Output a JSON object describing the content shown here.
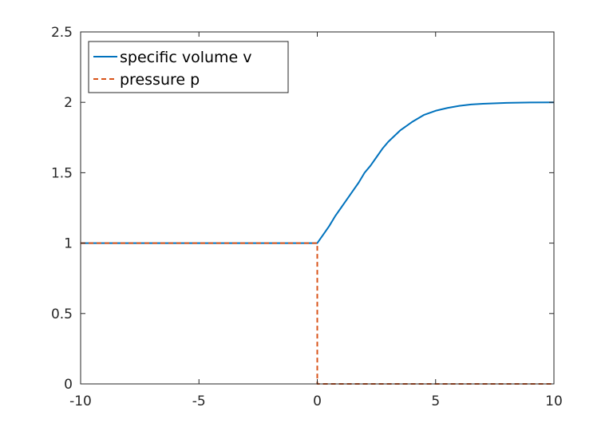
{
  "chart_data": {
    "type": "line",
    "title": "",
    "xlabel": "",
    "ylabel": "",
    "xlim": [
      -10,
      10
    ],
    "ylim": [
      0,
      2.5
    ],
    "xticks": [
      -10,
      -5,
      0,
      5,
      10
    ],
    "xtick_labels": [
      "-10",
      "-5",
      "0",
      "5",
      "10"
    ],
    "yticks": [
      0,
      0.5,
      1,
      1.5,
      2,
      2.5
    ],
    "ytick_labels": [
      "0",
      "0.5",
      "1",
      "1.5",
      "2",
      "2.5"
    ],
    "grid": false,
    "legend_position": "top-left",
    "series": [
      {
        "name": "specific volume v",
        "color": "#0072BD",
        "dash": "solid",
        "x": [
          -10,
          -5,
          0,
          0.25,
          0.5,
          0.75,
          1,
          1.25,
          1.5,
          1.75,
          2,
          2.25,
          2.5,
          2.75,
          3,
          3.5,
          4,
          4.5,
          5,
          5.5,
          6,
          6.5,
          7,
          8,
          9,
          10
        ],
        "y": [
          1,
          1,
          1,
          1.06,
          1.12,
          1.19,
          1.25,
          1.31,
          1.37,
          1.43,
          1.5,
          1.55,
          1.61,
          1.67,
          1.72,
          1.8,
          1.86,
          1.91,
          1.94,
          1.96,
          1.975,
          1.985,
          1.99,
          1.996,
          1.999,
          2
        ]
      },
      {
        "name": "pressure p",
        "color": "#D95319",
        "dash": "dashed",
        "x": [
          -10,
          0,
          0,
          10
        ],
        "y": [
          1,
          1,
          0,
          0
        ]
      }
    ]
  }
}
